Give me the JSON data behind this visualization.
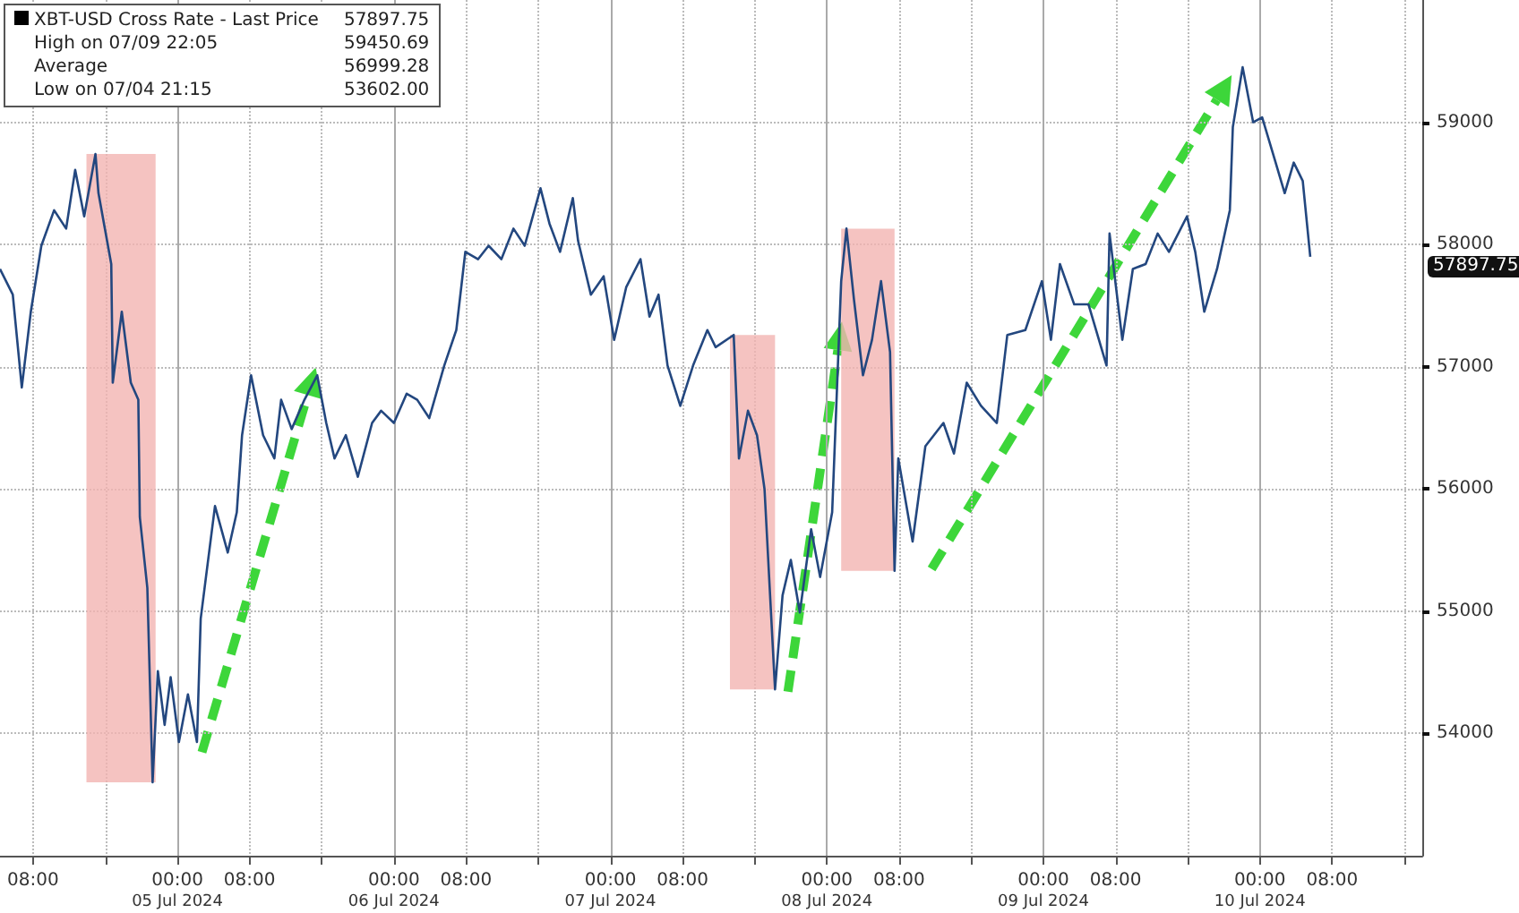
{
  "chart_data": {
    "type": "line",
    "legend": "top left",
    "grid": true,
    "xlim": [
      "2024-07-04T04:20",
      "2024-07-10T18:00"
    ],
    "xticks": [
      {
        "value": "2024-07-04T08:00",
        "label": "08:00"
      },
      {
        "value": "2024-07-04T16:00",
        "label": null
      },
      {
        "value": "2024-07-05T00:00",
        "label": "00:00\n05 Jul 2024"
      },
      {
        "value": "2024-07-05T08:00",
        "label": "08:00"
      },
      {
        "value": "2024-07-05T16:00",
        "label": null
      },
      {
        "value": "2024-07-06T00:00",
        "label": "00:00\n06 Jul 2024"
      },
      {
        "value": "2024-07-06T08:00",
        "label": "08:00"
      },
      {
        "value": "2024-07-06T16:00",
        "label": null
      },
      {
        "value": "2024-07-07T00:00",
        "label": "00:00\n07 Jul 2024"
      },
      {
        "value": "2024-07-07T08:00",
        "label": "08:00"
      },
      {
        "value": "2024-07-07T16:00",
        "label": null
      },
      {
        "value": "2024-07-08T00:00",
        "label": "00:00\n08 Jul 2024"
      },
      {
        "value": "2024-07-08T08:00",
        "label": "08:00"
      },
      {
        "value": "2024-07-08T16:00",
        "label": null
      },
      {
        "value": "2024-07-09T00:00",
        "label": "00:00\n09 Jul 2024"
      },
      {
        "value": "2024-07-09T08:00",
        "label": "08:00"
      },
      {
        "value": "2024-07-09T16:00",
        "label": null
      },
      {
        "value": "2024-07-10T00:00",
        "label": "00:00\n10 Jul 2024"
      },
      {
        "value": "2024-07-10T08:00",
        "label": "08:00"
      },
      {
        "value": "2024-07-10T16:00",
        "label": null
      }
    ],
    "ylim": [
      53000,
      60000
    ],
    "yticks": [
      54000,
      55000,
      56000,
      57000,
      58000,
      59000
    ],
    "bands": [
      {
        "axis": "x",
        "from": "2024-07-04T13:55",
        "to": "2024-07-04T21:35",
        "color": "#f2b4b2"
      },
      {
        "axis": "x",
        "from": "2024-07-07T13:15",
        "to": "2024-07-07T18:15",
        "color": "#f2b4b2"
      },
      {
        "axis": "x",
        "from": "2024-07-08T01:35",
        "to": "2024-07-08T07:30",
        "color": "#f2b4b2"
      }
    ],
    "annotations": [
      "57897.75",
      "High on 07/09 22:05",
      "59450.69",
      "Average",
      "56999.28",
      "Low on 07/04 21:15",
      "53602.00",
      "57897.75"
    ],
    "series": [
      {
        "name": "XBT-USD Cross Rate - Last Price",
        "color": "#23477f",
        "x": [
          "2024-07-04T04:20",
          "2024-07-04T05:45",
          "2024-07-04T06:45",
          "2024-07-04T07:45",
          "2024-07-04T08:55",
          "2024-07-04T10:20",
          "2024-07-04T11:40",
          "2024-07-04T12:40",
          "2024-07-04T13:40",
          "2024-07-04T14:55",
          "2024-07-04T15:15",
          "2024-07-04T16:40",
          "2024-07-04T16:50",
          "2024-07-04T17:50",
          "2024-07-04T18:50",
          "2024-07-04T19:40",
          "2024-07-04T19:50",
          "2024-07-04T20:40",
          "2024-07-04T21:15",
          "2024-07-04T21:50",
          "2024-07-04T22:35",
          "2024-07-04T23:15",
          "2024-07-05T00:10",
          "2024-07-05T01:10",
          "2024-07-05T02:10",
          "2024-07-05T02:35",
          "2024-07-05T03:10",
          "2024-07-05T04:10",
          "2024-07-05T05:35",
          "2024-07-05T06:35",
          "2024-07-05T07:10",
          "2024-07-05T08:10",
          "2024-07-05T09:30",
          "2024-07-05T10:45",
          "2024-07-05T11:30",
          "2024-07-05T12:40",
          "2024-07-05T14:05",
          "2024-07-05T15:30",
          "2024-07-05T16:30",
          "2024-07-05T17:25",
          "2024-07-05T18:40",
          "2024-07-05T20:00",
          "2024-07-05T21:35",
          "2024-07-05T22:35",
          "2024-07-06T00:00",
          "2024-07-06T01:25",
          "2024-07-06T02:35",
          "2024-07-06T03:55",
          "2024-07-06T05:35",
          "2024-07-06T06:55",
          "2024-07-06T07:55",
          "2024-07-06T09:20",
          "2024-07-06T10:30",
          "2024-07-06T11:55",
          "2024-07-06T13:15",
          "2024-07-06T14:30",
          "2024-07-06T16:15",
          "2024-07-06T17:15",
          "2024-07-06T18:25",
          "2024-07-06T19:50",
          "2024-07-06T20:25",
          "2024-07-06T21:50",
          "2024-07-06T23:15",
          "2024-07-07T00:25",
          "2024-07-07T01:45",
          "2024-07-07T03:20",
          "2024-07-07T04:20",
          "2024-07-07T05:20",
          "2024-07-07T06:20",
          "2024-07-07T07:45",
          "2024-07-07T09:10",
          "2024-07-07T10:45",
          "2024-07-07T11:40",
          "2024-07-07T13:40",
          "2024-07-07T14:15",
          "2024-07-07T15:15",
          "2024-07-07T16:15",
          "2024-07-07T17:05",
          "2024-07-07T18:15",
          "2024-07-07T19:05",
          "2024-07-07T20:00",
          "2024-07-07T21:00",
          "2024-07-07T22:15",
          "2024-07-07T23:15",
          "2024-07-08T00:35",
          "2024-07-08T01:35",
          "2024-07-08T02:10",
          "2024-07-08T03:00",
          "2024-07-08T04:00",
          "2024-07-08T05:00",
          "2024-07-08T06:00",
          "2024-07-08T07:00",
          "2024-07-08T07:30",
          "2024-07-08T07:55",
          "2024-07-08T09:30",
          "2024-07-08T10:55",
          "2024-07-08T12:55",
          "2024-07-08T14:05",
          "2024-07-08T15:30",
          "2024-07-08T17:05",
          "2024-07-08T18:50",
          "2024-07-08T20:00",
          "2024-07-08T22:00",
          "2024-07-08T23:50",
          "2024-07-09T00:50",
          "2024-07-09T01:50",
          "2024-07-09T03:25",
          "2024-07-09T05:00",
          "2024-07-09T07:00",
          "2024-07-09T07:20",
          "2024-07-09T08:45",
          "2024-07-09T09:55",
          "2024-07-09T11:20",
          "2024-07-09T12:40",
          "2024-07-09T13:55",
          "2024-07-09T15:55",
          "2024-07-09T16:50",
          "2024-07-09T17:50",
          "2024-07-09T19:15",
          "2024-07-09T20:40",
          "2024-07-09T21:00",
          "2024-07-09T22:05",
          "2024-07-09T23:15",
          "2024-07-10T00:15",
          "2024-07-10T01:35",
          "2024-07-10T02:45",
          "2024-07-10T03:45",
          "2024-07-10T04:45",
          "2024-07-10T05:35"
        ],
        "values": [
          57800,
          57590,
          56830,
          57450,
          57990,
          58280,
          58130,
          58610,
          58230,
          58740,
          58420,
          57840,
          56870,
          57450,
          56870,
          56730,
          55770,
          55190,
          53600,
          54510,
          54070,
          54460,
          53930,
          54320,
          53930,
          54940,
          55280,
          55860,
          55480,
          55810,
          56440,
          56930,
          56440,
          56250,
          56730,
          56490,
          56730,
          56930,
          56540,
          56250,
          56440,
          56100,
          56540,
          56640,
          56540,
          56780,
          56730,
          56580,
          57010,
          57300,
          57940,
          57880,
          57990,
          57880,
          58130,
          57990,
          58460,
          58170,
          57940,
          58380,
          58030,
          57590,
          57740,
          57220,
          57650,
          57880,
          57410,
          57590,
          57010,
          56680,
          57010,
          57300,
          57160,
          57260,
          56250,
          56640,
          56440,
          56000,
          54360,
          55130,
          55420,
          54990,
          55670,
          55280,
          55810,
          57700,
          58130,
          57550,
          56930,
          57220,
          57700,
          57120,
          55330,
          56250,
          55570,
          56350,
          56540,
          56290,
          56870,
          56680,
          56540,
          57260,
          57300,
          57700,
          57220,
          57840,
          57510,
          57510,
          57010,
          58090,
          57220,
          57800,
          57840,
          58090,
          57940,
          58230,
          57940,
          57450,
          57800,
          58280,
          58960,
          59450,
          59000,
          59040,
          58710,
          58420,
          58670,
          58520,
          57900
        ]
      }
    ]
  }
}
